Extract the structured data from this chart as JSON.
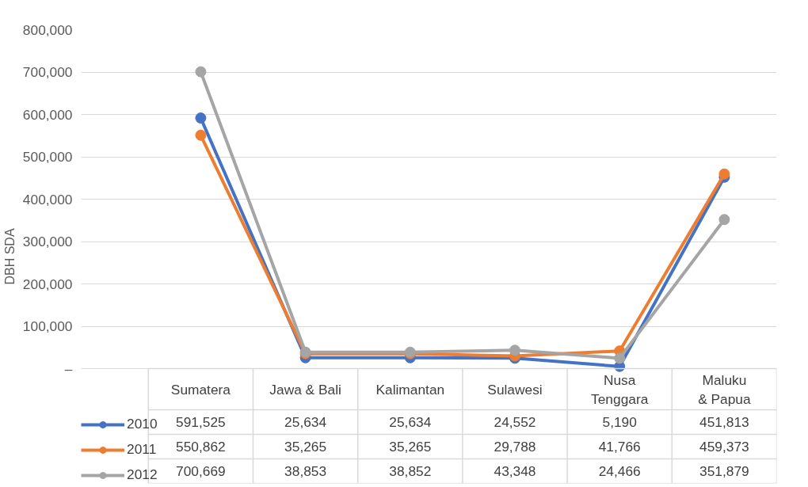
{
  "chart_data": {
    "type": "line",
    "ylabel": "DBH SDA",
    "categories": [
      "Sumatera",
      "Jawa & Bali",
      "Kalimantan",
      "Sulawesi",
      "Nusa Tenggara",
      "Maluku & Papua"
    ],
    "series": [
      {
        "name": "2010",
        "color": "#4472c4",
        "values": [
          591525,
          25634,
          25634,
          24552,
          5190,
          451813
        ],
        "value_labels": [
          "591,525",
          "25,634",
          "25,634",
          "24,552",
          "5,190",
          "451,813"
        ]
      },
      {
        "name": "2011",
        "color": "#ed7d31",
        "values": [
          550862,
          35265,
          35265,
          29788,
          41766,
          459373
        ],
        "value_labels": [
          "550,862",
          "35,265",
          "35,265",
          "29,788",
          "41,766",
          "459,373"
        ]
      },
      {
        "name": "2012",
        "color": "#a5a5a5",
        "values": [
          700669,
          38853,
          38852,
          43348,
          24466,
          351879
        ],
        "value_labels": [
          "700,669",
          "38,853",
          "38,852",
          "43,348",
          "24,466",
          "351,879"
        ]
      }
    ],
    "ylim": [
      0,
      800000
    ],
    "yticks": [
      {
        "value": 0,
        "label": "–"
      },
      {
        "value": 100000,
        "label": "100,000"
      },
      {
        "value": 200000,
        "label": "200,000"
      },
      {
        "value": 300000,
        "label": "300,000"
      },
      {
        "value": 400000,
        "label": "400,000"
      },
      {
        "value": 500000,
        "label": "500,000"
      },
      {
        "value": 600000,
        "label": "600,000"
      },
      {
        "value": 700000,
        "label": "700,000"
      },
      {
        "value": 800000,
        "label": "800,000"
      }
    ],
    "grid": "y",
    "legend": "bottom",
    "marker": "circle",
    "line_style": "solid"
  }
}
